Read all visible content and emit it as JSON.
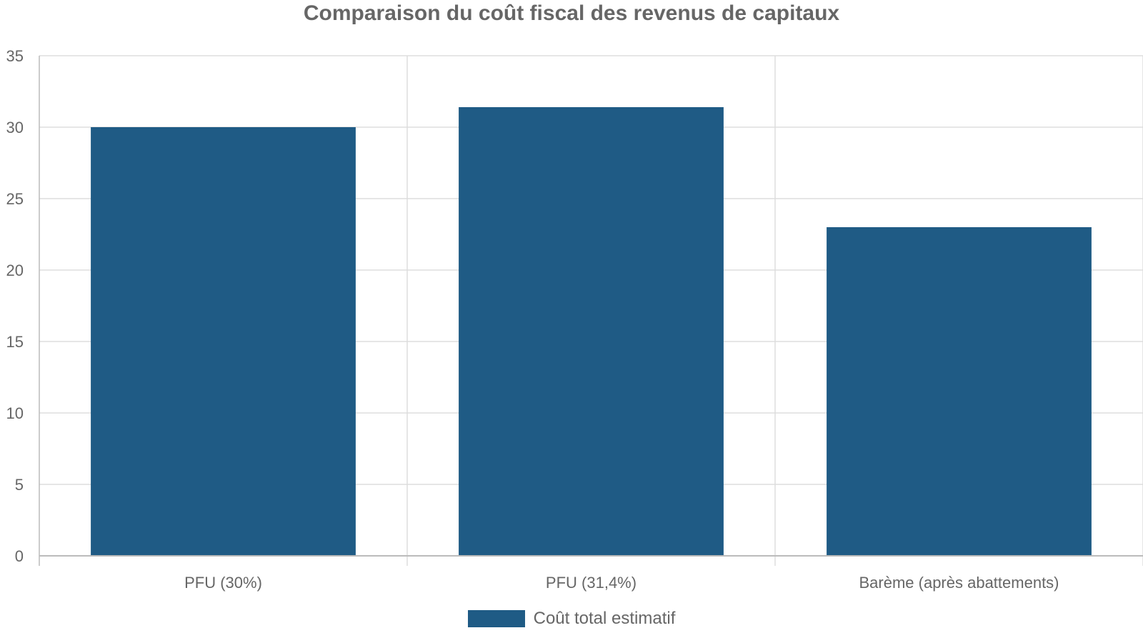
{
  "chart_data": {
    "type": "bar",
    "title": "Comparaison du coût fiscal des revenus de capitaux",
    "xlabel": "",
    "ylabel": "",
    "categories": [
      "PFU (30%)",
      "PFU (31,4%)",
      "Barème (après abattements)"
    ],
    "series": [
      {
        "name": "Coût total estimatif",
        "values": [
          30,
          31.4,
          23
        ],
        "color": "#1f5b85"
      }
    ],
    "ylim": [
      0,
      35
    ],
    "yticks": [
      "0",
      "5",
      "10",
      "15",
      "20",
      "25",
      "30",
      "35"
    ],
    "grid": true,
    "legend_position": "bottom"
  },
  "colors": {
    "bar": "#1f5b85",
    "grid": "#dddddd",
    "axis": "#bbbbbb",
    "text": "#666666"
  }
}
